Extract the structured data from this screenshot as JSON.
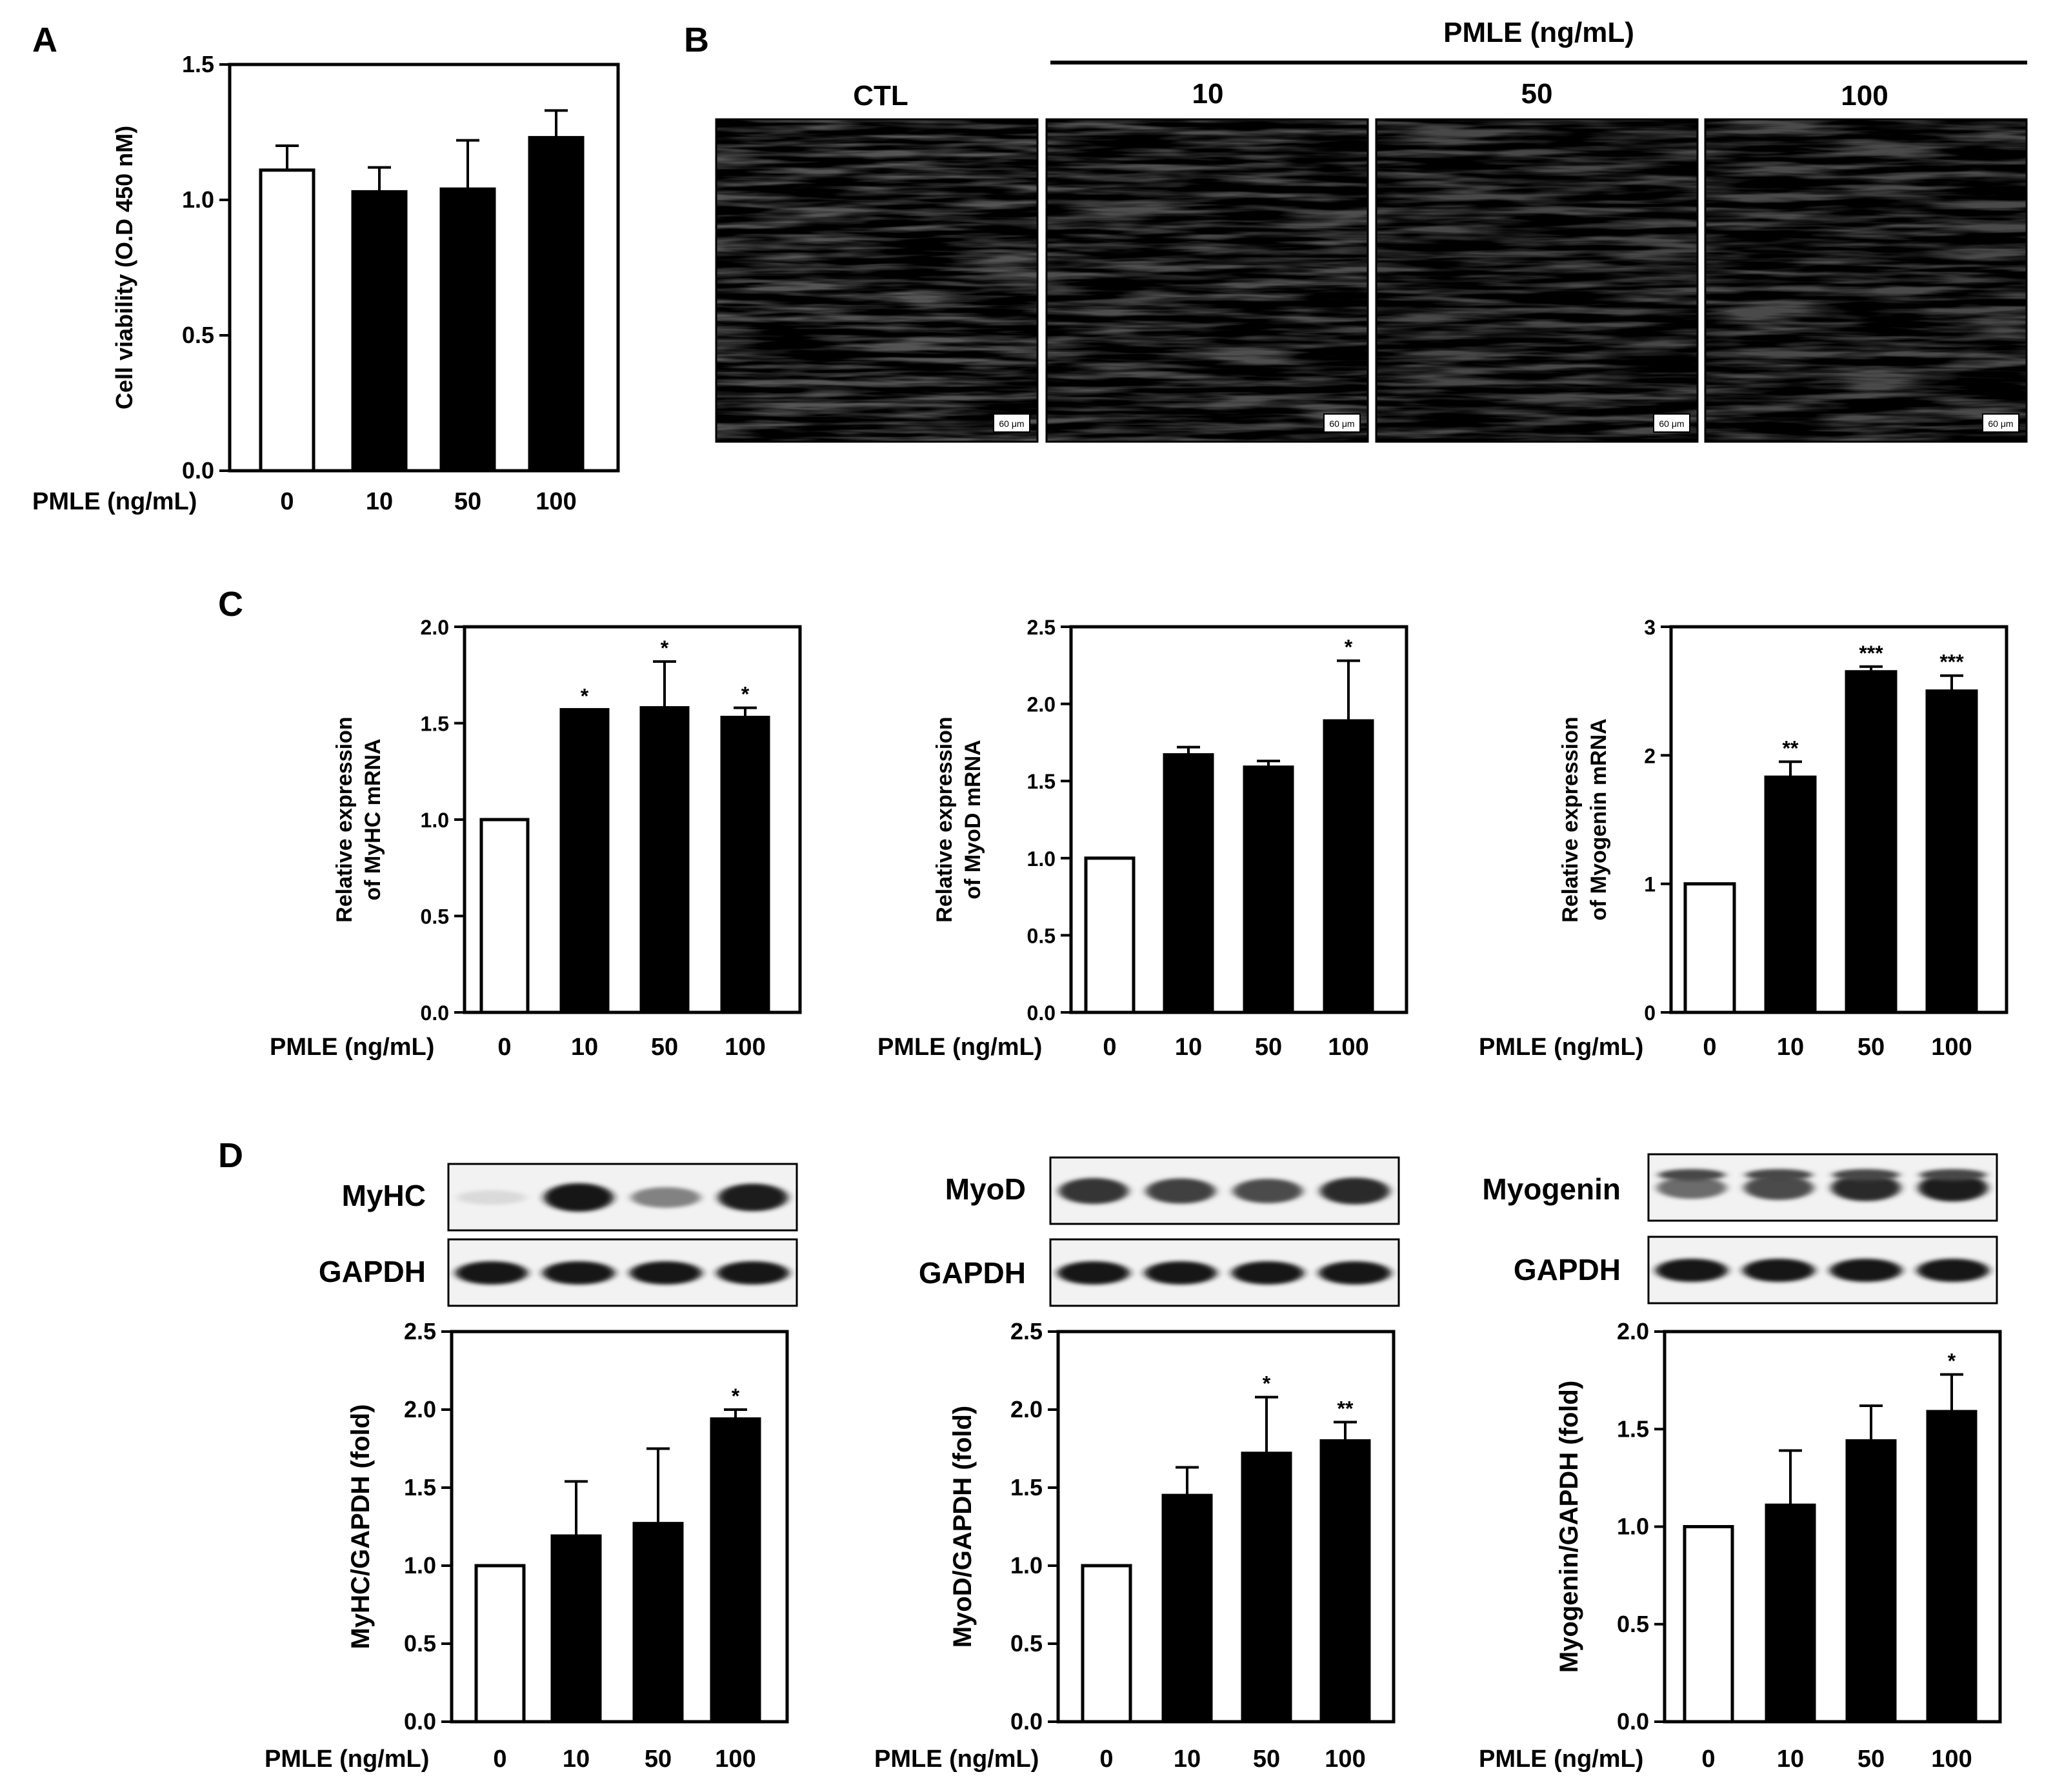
{
  "panel_labels": [
    "A",
    "B",
    "C",
    "D"
  ],
  "chart_data": [
    {
      "id": "A",
      "type": "bar",
      "categories": [
        "0",
        "10",
        "50",
        "100"
      ],
      "values": [
        1.11,
        1.03,
        1.04,
        1.23
      ],
      "errors": [
        0.09,
        0.09,
        0.18,
        0.1
      ],
      "significance": [
        "",
        "",
        "",
        ""
      ],
      "fill": [
        "#ffffff",
        "#000000",
        "#000000",
        "#000000"
      ],
      "ylim": [
        0,
        1.5
      ],
      "yticks": [
        "0.0",
        "0.5",
        "1.0",
        "1.5"
      ],
      "ylabel_lines": [
        "Cell viability (O.D 450 nM)"
      ],
      "xlabel_prefix": "PMLE (ng/mL)"
    },
    {
      "id": "C1",
      "type": "bar",
      "categories": [
        "0",
        "10",
        "50",
        "100"
      ],
      "values": [
        1.0,
        1.57,
        1.58,
        1.53
      ],
      "errors": [
        0.0,
        0.0,
        0.24,
        0.05
      ],
      "significance": [
        "",
        "*",
        "*",
        "*"
      ],
      "fill": [
        "#ffffff",
        "#000000",
        "#000000",
        "#000000"
      ],
      "ylim": [
        0,
        2.0
      ],
      "yticks": [
        "0.0",
        "0.5",
        "1.0",
        "1.5",
        "2.0"
      ],
      "ylabel_lines": [
        "Relative expression",
        "of MyHC mRNA"
      ],
      "xlabel_prefix": "PMLE (ng/mL)"
    },
    {
      "id": "C2",
      "type": "bar",
      "categories": [
        "0",
        "10",
        "50",
        "100"
      ],
      "values": [
        1.0,
        1.67,
        1.59,
        1.89
      ],
      "errors": [
        0.0,
        0.05,
        0.04,
        0.39
      ],
      "significance": [
        "",
        "",
        "",
        "*"
      ],
      "fill": [
        "#ffffff",
        "#000000",
        "#000000",
        "#000000"
      ],
      "ylim": [
        0,
        2.5
      ],
      "yticks": [
        "0.0",
        "0.5",
        "1.0",
        "1.5",
        "2.0",
        "2.5"
      ],
      "ylabel_lines": [
        "Relative expression",
        "of MyoD mRNA"
      ],
      "xlabel_prefix": "PMLE (ng/mL)"
    },
    {
      "id": "C3",
      "type": "bar",
      "categories": [
        "0",
        "10",
        "50",
        "100"
      ],
      "values": [
        1.0,
        1.83,
        2.65,
        2.5
      ],
      "errors": [
        0.0,
        0.12,
        0.04,
        0.12
      ],
      "significance": [
        "",
        "**",
        "***",
        "***"
      ],
      "fill": [
        "#ffffff",
        "#000000",
        "#000000",
        "#000000"
      ],
      "ylim": [
        0,
        3
      ],
      "yticks": [
        "0",
        "1",
        "2",
        "3"
      ],
      "ylabel_lines": [
        "Relative expression",
        "of Myogenin mRNA"
      ],
      "xlabel_prefix": "PMLE (ng/mL)"
    },
    {
      "id": "D1",
      "type": "bar",
      "categories": [
        "0",
        "10",
        "50",
        "100"
      ],
      "values": [
        1.0,
        1.19,
        1.27,
        1.94
      ],
      "errors": [
        0.0,
        0.35,
        0.48,
        0.06
      ],
      "significance": [
        "",
        "",
        "",
        "*"
      ],
      "fill": [
        "#ffffff",
        "#000000",
        "#000000",
        "#000000"
      ],
      "ylim": [
        0,
        2.5
      ],
      "yticks": [
        "0.0",
        "0.5",
        "1.0",
        "1.5",
        "2.0",
        "2.5"
      ],
      "ylabel_lines": [
        "MyHC/GAPDH (fold)"
      ],
      "xlabel_prefix": "PMLE (ng/mL)"
    },
    {
      "id": "D2",
      "type": "bar",
      "categories": [
        "0",
        "10",
        "50",
        "100"
      ],
      "values": [
        1.0,
        1.45,
        1.72,
        1.8
      ],
      "errors": [
        0.0,
        0.18,
        0.36,
        0.12
      ],
      "significance": [
        "",
        "",
        "*",
        "**"
      ],
      "fill": [
        "#ffffff",
        "#000000",
        "#000000",
        "#000000"
      ],
      "ylim": [
        0,
        2.5
      ],
      "yticks": [
        "0.0",
        "0.5",
        "1.0",
        "1.5",
        "2.0",
        "2.5"
      ],
      "ylabel_lines": [
        "MyoD/GAPDH (fold)"
      ],
      "xlabel_prefix": "PMLE (ng/mL)"
    },
    {
      "id": "D3",
      "type": "bar",
      "categories": [
        "0",
        "10",
        "50",
        "100"
      ],
      "values": [
        1.0,
        1.11,
        1.44,
        1.59
      ],
      "errors": [
        0.0,
        0.28,
        0.18,
        0.19
      ],
      "significance": [
        "",
        "",
        "",
        "*"
      ],
      "fill": [
        "#ffffff",
        "#000000",
        "#000000",
        "#000000"
      ],
      "ylim": [
        0,
        2.0
      ],
      "yticks": [
        "0.0",
        "0.5",
        "1.0",
        "1.5",
        "2.0"
      ],
      "ylabel_lines": [
        "Myogenin/GAPDH (fold)"
      ],
      "xlabel_prefix": "PMLE (ng/mL)"
    }
  ],
  "micrographs": {
    "header": "PMLE (ng/mL)",
    "labels": [
      "CTL",
      "10",
      "50",
      "100"
    ],
    "scale_label": "60 μm"
  },
  "blots": [
    {
      "target": "MyHC",
      "control": "GAPDH",
      "band_intensity": [
        0.1,
        1.0,
        0.5,
        0.95
      ]
    },
    {
      "target": "MyoD",
      "control": "GAPDH",
      "band_intensity": [
        0.85,
        0.8,
        0.75,
        0.9
      ]
    },
    {
      "target": "Myogenin",
      "control": "GAPDH",
      "band_intensity": [
        0.6,
        0.75,
        0.9,
        0.95
      ]
    }
  ],
  "colors": {
    "ink": "#000000",
    "paper": "#ffffff",
    "micro_bg": "#545454",
    "blot_bg": "#f2f2f2"
  }
}
